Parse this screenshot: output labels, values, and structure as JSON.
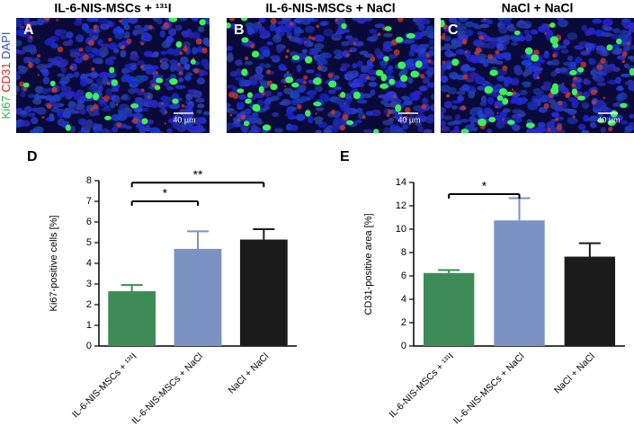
{
  "image_panels": {
    "stain_labels": [
      "Ki67",
      "CD31",
      "DAPI"
    ],
    "scale_bar": "40 µm",
    "panels": [
      {
        "letter": "A",
        "title": "IL-6-NIS-MSCs + ¹³¹I"
      },
      {
        "letter": "B",
        "title": "IL-6-NIS-MSCs + NaCl"
      },
      {
        "letter": "C",
        "title": "NaCl + NaCl"
      }
    ]
  },
  "chart_data": [
    {
      "type": "bar",
      "panel_letter": "D",
      "y_label": "Ki67-positive cells [%]",
      "categories": [
        "IL-6-NIS-MSCs + ¹³¹I",
        "IL-6-NIS-MSCs + NaCl",
        "NaCl + NaCl"
      ],
      "values": [
        2.65,
        4.7,
        5.15
      ],
      "errors": [
        0.3,
        0.85,
        0.5
      ],
      "colors": [
        "#3d8c57",
        "#7a93c3",
        "#1c1c1c"
      ],
      "ylim": [
        0,
        8
      ],
      "yticks": [
        0,
        1,
        2,
        3,
        4,
        5,
        6,
        7,
        8
      ],
      "annotations": [
        {
          "label": "*",
          "between": [
            0,
            1
          ],
          "y": 7
        },
        {
          "label": "**",
          "between": [
            0,
            2
          ],
          "y": 7.9
        }
      ]
    },
    {
      "type": "bar",
      "panel_letter": "E",
      "y_label": "CD31-positive area [%]",
      "categories": [
        "IL-6-NIS-MSCs + ¹³¹I",
        "IL-6-NIS-MSCs + NaCl",
        "NaCl + NaCl"
      ],
      "values": [
        6.25,
        10.75,
        7.65
      ],
      "errors": [
        0.25,
        1.9,
        1.15
      ],
      "colors": [
        "#3d8c57",
        "#7a93c3",
        "#1c1c1c"
      ],
      "ylim": [
        0,
        14
      ],
      "yticks": [
        0,
        2,
        4,
        6,
        8,
        10,
        12,
        14
      ],
      "annotations": [
        {
          "label": "*",
          "between": [
            0,
            1
          ],
          "y": 13
        }
      ]
    }
  ]
}
